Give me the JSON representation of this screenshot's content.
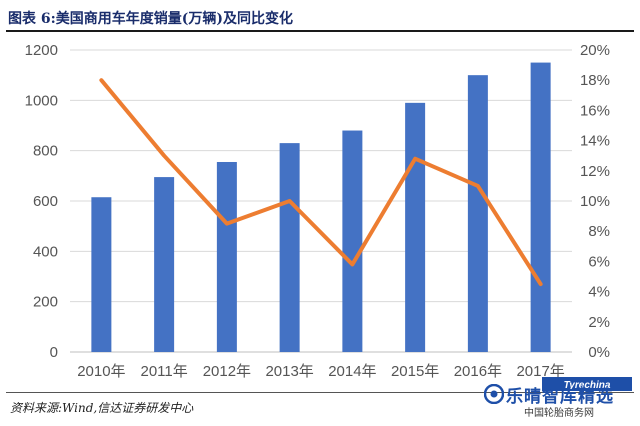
{
  "header": {
    "title": "图表 6:美国商用车年度销量(万辆)及同比变化"
  },
  "footer": {
    "source": "资料来源:Wind,信达证券研发中心"
  },
  "watermark": {
    "main": "乐晴智库精选",
    "sub": "中国轮胎商务网",
    "logo_text": "Tyrechina"
  },
  "colors": {
    "bar": "#4472c4",
    "line": "#ed7d31",
    "grid": "#d9d9d9",
    "axis_text": "#595959",
    "title": "#1a2d6b"
  },
  "chart_data": {
    "type": "bar+line",
    "categories": [
      "2010年",
      "2011年",
      "2012年",
      "2013年",
      "2014年",
      "2015年",
      "2016年",
      "2017年"
    ],
    "series": [
      {
        "name": "销量(万辆)",
        "type": "bar",
        "axis": "left",
        "values": [
          615,
          695,
          755,
          830,
          880,
          990,
          1100,
          1150
        ]
      },
      {
        "name": "同比变化",
        "type": "line",
        "axis": "right",
        "values": [
          18,
          13,
          8.5,
          10,
          5.8,
          12.8,
          11,
          4.5
        ]
      }
    ],
    "left_axis": {
      "min": 0,
      "max": 1200,
      "ticks": [
        "0",
        "200",
        "400",
        "600",
        "800",
        "1000",
        "1200"
      ]
    },
    "right_axis": {
      "min": 0,
      "max": 20,
      "ticks": [
        "0%",
        "2%",
        "4%",
        "6%",
        "8%",
        "10%",
        "12%",
        "14%",
        "16%",
        "18%",
        "20%"
      ]
    },
    "grid": true,
    "legend": "none"
  }
}
